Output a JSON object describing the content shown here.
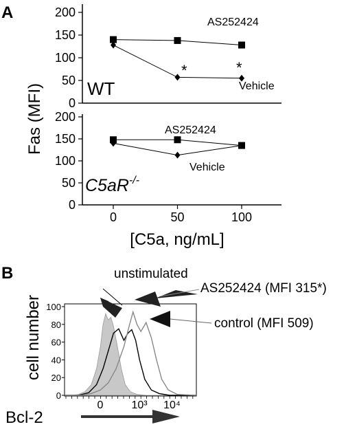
{
  "panel_a_label": "A",
  "panel_b_label": "B",
  "chart_data": [
    {
      "type": "line",
      "panel": "A",
      "condition": "WT",
      "x": [
        0,
        50,
        100
      ],
      "series": [
        {
          "name": "AS252424",
          "marker": "square",
          "values": [
            140,
            138,
            128
          ]
        },
        {
          "name": "Vehicle",
          "marker": "diamond",
          "values": [
            128,
            57,
            55
          ]
        }
      ],
      "ylim": [
        0,
        200
      ],
      "yticks": [
        "0",
        "50",
        "100",
        "150",
        "200"
      ],
      "annotations": [
        "*",
        "*"
      ]
    },
    {
      "type": "line",
      "panel": "A",
      "condition": "C5aR-/-",
      "x": [
        0,
        50,
        100
      ],
      "series": [
        {
          "name": "AS252424",
          "marker": "square",
          "values": [
            148,
            148,
            135
          ]
        },
        {
          "name": "Vehicle",
          "marker": "diamond",
          "values": [
            140,
            113,
            135
          ]
        }
      ],
      "ylim": [
        0,
        200
      ],
      "yticks": [
        "0",
        "50",
        "100",
        "150",
        "200"
      ],
      "xticks": [
        "0",
        "50",
        "100"
      ]
    },
    {
      "type": "area",
      "panel": "B",
      "xlabel": "Bcl-2",
      "ylabel": "cell number",
      "yticks": [
        "0",
        "20",
        "40",
        "60",
        "80",
        "100"
      ],
      "xticks": [
        "0",
        "10³",
        "10⁴"
      ],
      "ylim": [
        0,
        100
      ],
      "xlim": [
        0,
        1
      ],
      "series": [
        {
          "name": "unstimulated",
          "fill": "#c8c8c8",
          "values": [
            [
              0.0,
              0
            ],
            [
              0.05,
              0
            ],
            [
              0.1,
              1
            ],
            [
              0.15,
              4
            ],
            [
              0.2,
              12
            ],
            [
              0.24,
              30
            ],
            [
              0.27,
              55
            ],
            [
              0.29,
              80
            ],
            [
              0.31,
              92
            ],
            [
              0.33,
              85
            ],
            [
              0.35,
              88
            ],
            [
              0.37,
              78
            ],
            [
              0.4,
              55
            ],
            [
              0.43,
              30
            ],
            [
              0.46,
              12
            ],
            [
              0.5,
              4
            ],
            [
              0.55,
              1
            ],
            [
              0.62,
              0
            ],
            [
              1.0,
              0
            ]
          ]
        },
        {
          "name": "AS252424 (MFI 315*)",
          "stroke": "#000000",
          "values": [
            [
              0.0,
              0
            ],
            [
              0.1,
              0
            ],
            [
              0.18,
              3
            ],
            [
              0.24,
              12
            ],
            [
              0.29,
              30
            ],
            [
              0.33,
              50
            ],
            [
              0.37,
              70
            ],
            [
              0.41,
              75
            ],
            [
              0.45,
              62
            ],
            [
              0.48,
              70
            ],
            [
              0.51,
              74
            ],
            [
              0.54,
              62
            ],
            [
              0.57,
              40
            ],
            [
              0.61,
              18
            ],
            [
              0.66,
              6
            ],
            [
              0.72,
              2
            ],
            [
              0.8,
              0
            ],
            [
              1.0,
              0
            ]
          ]
        },
        {
          "name": "control (MFI 509)",
          "stroke": "#888888",
          "values": [
            [
              0.0,
              0
            ],
            [
              0.12,
              0
            ],
            [
              0.2,
              2
            ],
            [
              0.27,
              6
            ],
            [
              0.33,
              14
            ],
            [
              0.39,
              30
            ],
            [
              0.45,
              55
            ],
            [
              0.49,
              78
            ],
            [
              0.52,
              94
            ],
            [
              0.55,
              80
            ],
            [
              0.58,
              72
            ],
            [
              0.62,
              82
            ],
            [
              0.66,
              65
            ],
            [
              0.7,
              40
            ],
            [
              0.74,
              18
            ],
            [
              0.79,
              6
            ],
            [
              0.86,
              1
            ],
            [
              1.0,
              0
            ]
          ]
        }
      ]
    }
  ],
  "labels": {
    "fas_axis": "Fas (MFI)",
    "c5a_axis": "[C5a, ng/mL]",
    "wt": "WT",
    "c5ar": "C5aR",
    "c5ar_sup": "-/-",
    "as_top": "AS252424",
    "vehicle_top": "Vehicle",
    "as_bottom": "AS252424",
    "vehicle_bottom": "Vehicle",
    "star": "*",
    "unstimulated": "unstimulated",
    "as_b": "AS252424 (MFI 315*)",
    "control_b": "control (MFI 509)"
  }
}
